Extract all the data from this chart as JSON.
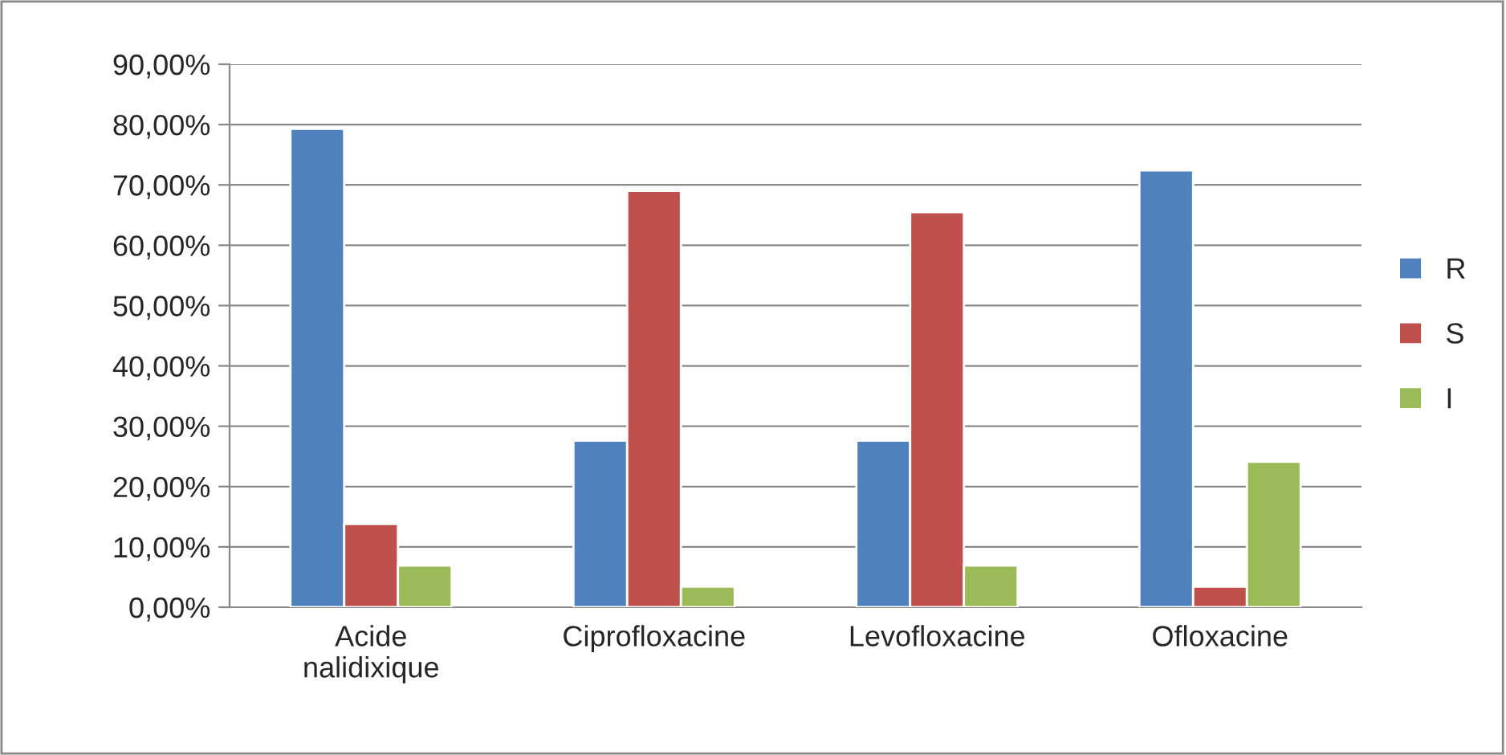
{
  "chart_data": {
    "type": "bar",
    "categories": [
      "Acide nalidixique",
      "Ciprofloxacine",
      "Levofloxacine",
      "Ofloxacine"
    ],
    "series": [
      {
        "name": "R",
        "color": "#4f81bd",
        "values": [
          79.3,
          27.6,
          27.6,
          72.4
        ]
      },
      {
        "name": "S",
        "color": "#c0504d",
        "values": [
          13.8,
          69.0,
          65.5,
          3.4
        ]
      },
      {
        "name": "I",
        "color": "#9bbb59",
        "values": [
          6.9,
          3.4,
          6.9,
          24.1
        ]
      }
    ],
    "ylim": [
      0,
      90
    ],
    "yticks": [
      {
        "value": 0,
        "label": "0,00%"
      },
      {
        "value": 10,
        "label": "10,00%"
      },
      {
        "value": 20,
        "label": "20,00%"
      },
      {
        "value": 30,
        "label": "30,00%"
      },
      {
        "value": 40,
        "label": "40,00%"
      },
      {
        "value": 50,
        "label": "50,00%"
      },
      {
        "value": 60,
        "label": "60,00%"
      },
      {
        "value": 70,
        "label": "70,00%"
      },
      {
        "value": 80,
        "label": "80,00%"
      },
      {
        "value": 90,
        "label": "90,00%"
      }
    ],
    "grid": "y",
    "legend": "right"
  }
}
